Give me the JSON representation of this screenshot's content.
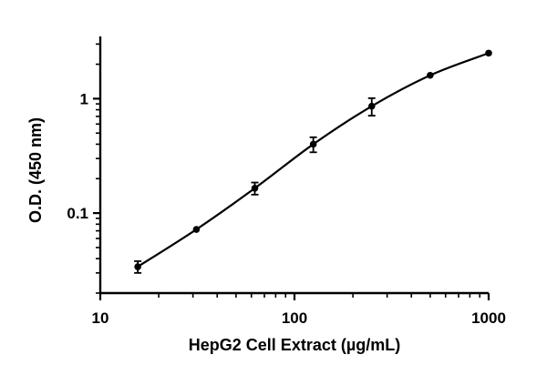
{
  "chart_data": {
    "type": "scatter",
    "title": "",
    "xlabel": "HepG2 Cell Extract (µg/mL)",
    "ylabel": "O.D. (450 nm)",
    "x_scale": "log",
    "y_scale": "log",
    "xlim": [
      10,
      1000
    ],
    "ylim": [
      0.02,
      3.5
    ],
    "x_ticks": [
      10,
      100,
      1000
    ],
    "x_tick_labels": [
      "10",
      "100",
      "1000"
    ],
    "y_ticks": [
      0.1,
      1
    ],
    "y_tick_labels": [
      "0.1",
      "1"
    ],
    "grid": false,
    "legend": "none",
    "series": [
      {
        "x": [
          15.6,
          31.25,
          62.5,
          125,
          250,
          500,
          1000
        ],
        "y": [
          0.034,
          0.072,
          0.165,
          0.4,
          0.86,
          1.6,
          2.5
        ],
        "error": [
          0.004,
          0.002,
          0.02,
          0.06,
          0.15,
          0.06,
          0.04
        ]
      }
    ],
    "fit_curve": true
  }
}
